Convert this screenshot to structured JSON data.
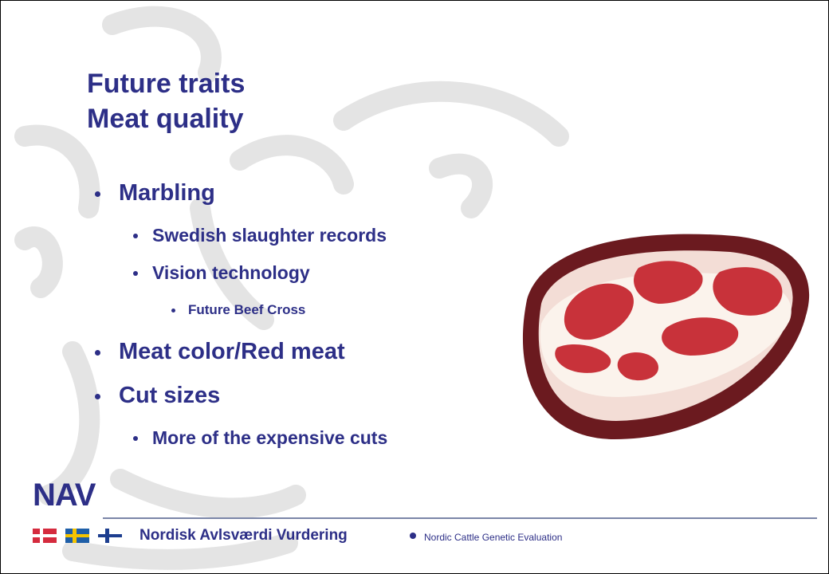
{
  "title": {
    "lines": [
      "Future traits",
      "Meat quality"
    ]
  },
  "bullets": [
    {
      "level": 1,
      "text": "Marbling"
    },
    {
      "level": 2,
      "text": "Swedish slaughter records"
    },
    {
      "level": 2,
      "text": "Vision technology"
    },
    {
      "level": 3,
      "text": "Future Beef Cross"
    },
    {
      "level": 1,
      "text": "Meat color/Red meat"
    },
    {
      "level": 1,
      "text": "Cut sizes"
    },
    {
      "level": 2,
      "text": "More of the expensive cuts"
    }
  ],
  "footer": {
    "logo": "NAV",
    "organization": "Nordisk Avlsværdi Vurdering",
    "tagline": "Nordic Cattle Genetic Evaluation"
  }
}
